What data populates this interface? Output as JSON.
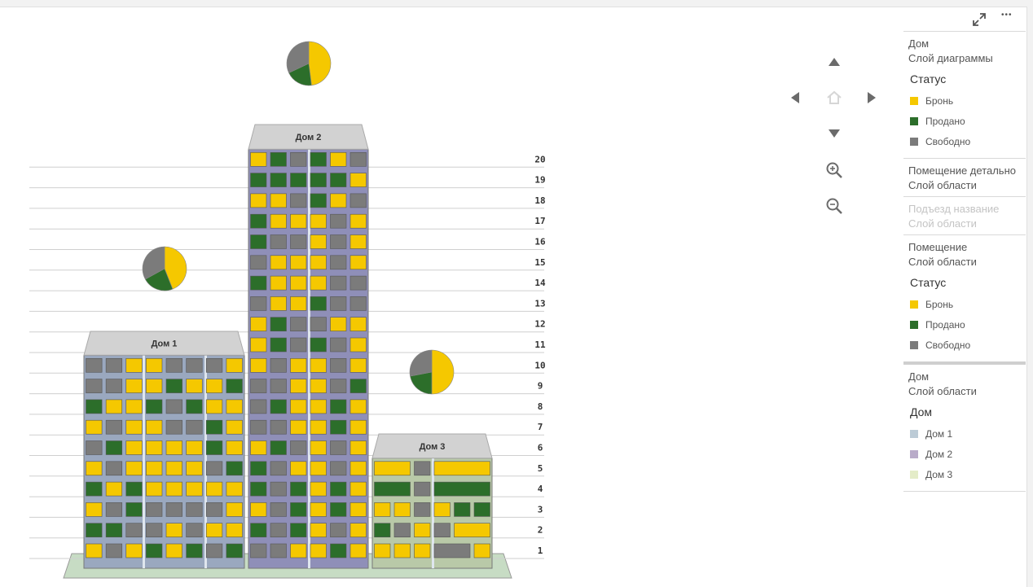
{
  "toolbar": {
    "expand_icon": "expand-icon",
    "more_icon": "more-options-icon",
    "more_label": "•••"
  },
  "colors": {
    "bron": "#f5c800",
    "prodano": "#2c6e2a",
    "svobodno": "#7b7b7b"
  },
  "floors": [
    "1",
    "2",
    "3",
    "4",
    "5",
    "6",
    "7",
    "8",
    "9",
    "10",
    "11",
    "12",
    "13",
    "14",
    "15",
    "16",
    "17",
    "18",
    "19",
    "20"
  ],
  "buildings": [
    {
      "name": "Дом 1",
      "facade": "#9aa8bf",
      "pie": {
        "bron": 44,
        "prodano": 23,
        "svobodno": 33
      },
      "rows": [
        "BSBPBPSP",
        "PPSSBSBB",
        "BSPSSSSB",
        "PBPBBBBB",
        "BSBBBBSP",
        "SPBBBBPB",
        "BSBBSSPB",
        "PBBPSPBB",
        "SSBBPBBP",
        "SSBBSSSB"
      ]
    },
    {
      "name": "Дом 2",
      "facade": "#8f8fb8",
      "pie": {
        "bron": 48,
        "prodano": 20,
        "svobodno": 32
      },
      "rows": [
        "SSBBPB",
        "PSPBSB",
        "BSPBPB",
        "PSPBPB",
        "PSBBSB",
        "BPSBSB",
        "SSBBPB",
        "SPBBPB",
        "SSBBSP",
        "BSBBSB",
        "BPSPSB",
        "BPSSBB",
        "SBBPSS",
        "PBBBSS",
        "SBBBSB",
        "PSSBSB",
        "PBBBSB",
        "BBSPBS",
        "PPPPPB",
        "BPSPBS"
      ]
    },
    {
      "name": "Дом 3",
      "facade": "#b9c9a8",
      "pie": {
        "bron": 50,
        "prodano": 22,
        "svobodno": 28
      },
      "rows": [
        [
          [
            "B",
            1
          ],
          [
            "B",
            1
          ],
          [
            "B",
            1
          ],
          [
            "S",
            2
          ],
          [
            "B",
            1
          ]
        ],
        [
          [
            "P",
            1
          ],
          [
            "S",
            1
          ],
          [
            "B",
            1
          ],
          [
            "S",
            1
          ],
          [
            "B",
            2
          ]
        ],
        [
          [
            "B",
            1
          ],
          [
            "B",
            1
          ],
          [
            "S",
            1
          ],
          [
            "B",
            1
          ],
          [
            "P",
            1
          ],
          [
            "P",
            1
          ]
        ],
        [
          [
            "P",
            2
          ],
          [
            "S",
            1
          ],
          [
            "P",
            3
          ]
        ],
        [
          [
            "B",
            2
          ],
          [
            "S",
            1
          ],
          [
            "B",
            3
          ]
        ]
      ]
    }
  ],
  "legend": {
    "sections": [
      {
        "name": "Дом",
        "sub": "Слой диаграммы",
        "title": "Статус",
        "dim": false,
        "items": [
          {
            "label": "Бронь",
            "color": "#f5c800"
          },
          {
            "label": "Продано",
            "color": "#2c6e2a"
          },
          {
            "label": "Свободно",
            "color": "#7b7b7b"
          }
        ]
      },
      {
        "name": "Помещение детально",
        "sub": "Слой области",
        "title": "",
        "dim": false,
        "items": []
      },
      {
        "name": "Подъезд название",
        "sub": "Слой области",
        "title": "",
        "dim": true,
        "items": []
      },
      {
        "name": "Помещение",
        "sub": "Слой области",
        "title": "Статус",
        "dim": false,
        "items": [
          {
            "label": "Бронь",
            "color": "#f5c800"
          },
          {
            "label": "Продано",
            "color": "#2c6e2a"
          },
          {
            "label": "Свободно",
            "color": "#7b7b7b"
          }
        ]
      },
      {
        "name": "Дом",
        "sub": "Слой области",
        "title": "Дом",
        "dim": false,
        "thick": true,
        "items": [
          {
            "label": "Дом 1",
            "color": "#bccbd6"
          },
          {
            "label": "Дом 2",
            "color": "#b9abc9"
          },
          {
            "label": "Дом 3",
            "color": "#e4ecc8"
          }
        ]
      }
    ]
  },
  "map_controls": {
    "up": "pan-up-icon",
    "down": "pan-down-icon",
    "left": "pan-left-icon",
    "right": "pan-right-icon",
    "home": "home-icon",
    "zoom_in": "zoom-in-icon",
    "zoom_out": "zoom-out-icon"
  }
}
